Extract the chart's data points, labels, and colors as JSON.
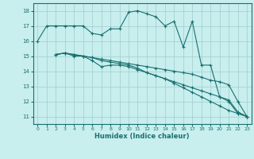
{
  "xlabel": "Humidex (Indice chaleur)",
  "bg_color": "#c8eeee",
  "grid_color": "#a0cccc",
  "line_color": "#1a7070",
  "xlim": [
    -0.5,
    23.5
  ],
  "ylim": [
    10.5,
    18.5
  ],
  "xticks": [
    0,
    1,
    2,
    3,
    4,
    5,
    6,
    7,
    8,
    9,
    10,
    11,
    12,
    13,
    14,
    15,
    16,
    17,
    18,
    19,
    20,
    21,
    22,
    23
  ],
  "yticks": [
    11,
    12,
    13,
    14,
    15,
    16,
    17,
    18
  ],
  "line1_x": [
    0,
    1,
    2,
    3,
    4,
    5,
    6,
    7,
    8,
    9,
    10,
    11,
    12,
    13,
    14,
    15,
    16,
    17,
    18,
    19,
    20,
    21,
    22,
    23
  ],
  "line1_y": [
    16.0,
    17.0,
    17.0,
    17.0,
    17.0,
    17.0,
    16.5,
    16.4,
    16.8,
    16.8,
    17.9,
    18.0,
    17.8,
    17.6,
    17.0,
    17.3,
    15.6,
    17.3,
    14.4,
    14.4,
    12.3,
    12.0,
    11.2,
    11.0
  ],
  "line2_x": [
    2,
    3,
    4,
    5,
    6,
    7,
    8,
    9,
    10,
    11,
    12,
    13,
    14,
    15,
    16,
    17,
    18,
    19,
    20,
    21,
    22,
    23
  ],
  "line2_y": [
    15.1,
    15.2,
    15.0,
    15.0,
    14.7,
    14.3,
    14.4,
    14.4,
    14.3,
    14.1,
    13.9,
    13.7,
    13.5,
    13.3,
    13.1,
    12.9,
    12.7,
    12.5,
    12.3,
    12.1,
    11.3,
    11.0
  ],
  "line3_x": [
    2,
    3,
    4,
    5,
    6,
    7,
    8,
    9,
    10,
    11,
    12,
    13,
    14,
    15,
    16,
    17,
    18,
    19,
    20,
    21,
    22,
    23
  ],
  "line3_y": [
    15.1,
    15.2,
    15.1,
    15.0,
    14.9,
    14.8,
    14.7,
    14.6,
    14.5,
    14.4,
    14.3,
    14.2,
    14.1,
    14.0,
    13.9,
    13.8,
    13.6,
    13.4,
    13.3,
    13.1,
    12.0,
    11.0
  ],
  "line4_x": [
    2,
    3,
    4,
    5,
    6,
    7,
    8,
    9,
    10,
    11,
    12,
    13,
    14,
    15,
    16,
    17,
    18,
    19,
    20,
    21,
    22,
    23
  ],
  "line4_y": [
    15.1,
    15.2,
    15.1,
    15.0,
    14.9,
    14.7,
    14.6,
    14.5,
    14.4,
    14.2,
    13.9,
    13.7,
    13.5,
    13.2,
    12.9,
    12.6,
    12.3,
    12.0,
    11.7,
    11.4,
    11.2,
    11.0
  ]
}
